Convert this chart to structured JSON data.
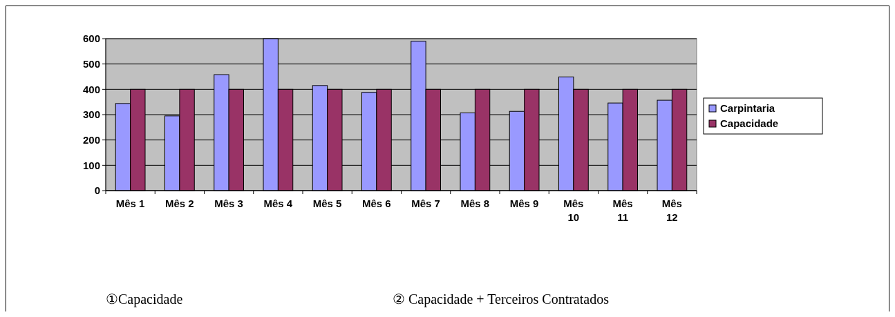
{
  "chart_data": {
    "type": "bar",
    "categories": [
      "Mês 1",
      "Mês 2",
      "Mês 3",
      "Mês 4",
      "Mês 5",
      "Mês 6",
      "Mês 7",
      "Mês 8",
      "Mês 9",
      "Mês 10",
      "Mês 11",
      "Mês 12"
    ],
    "series": [
      {
        "name": "Carpintaria",
        "color": "#9999ff",
        "values": [
          344,
          295,
          458,
          600,
          415,
          388,
          590,
          307,
          313,
          449,
          346,
          357
        ]
      },
      {
        "name": "Capacidade",
        "color": "#993366",
        "values": [
          400,
          400,
          400,
          400,
          400,
          400,
          400,
          400,
          400,
          400,
          400,
          400
        ]
      }
    ],
    "ylim": [
      0,
      600
    ],
    "yticks": [
      0,
      100,
      200,
      300,
      400,
      500,
      600
    ],
    "grid": "y",
    "legend": "right",
    "annotations": [
      "①Capacidade",
      "② Capacidade + Terceiros Contratados"
    ]
  }
}
